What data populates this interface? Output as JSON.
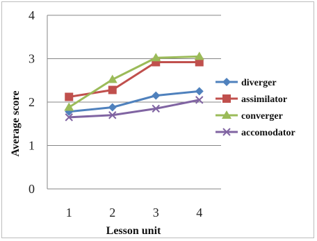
{
  "chart_data": {
    "type": "line",
    "title": "",
    "xlabel": "Lesson unit",
    "ylabel": "Average score",
    "x": [
      1,
      2,
      3,
      4
    ],
    "ylim": [
      0,
      4
    ],
    "yticks": [
      0,
      1,
      2,
      3,
      4
    ],
    "grid": true,
    "legend_position": "right",
    "series": [
      {
        "name": "diverger",
        "values": [
          1.78,
          1.88,
          2.15,
          2.25
        ],
        "color": "#4f81bd",
        "marker": "diamond"
      },
      {
        "name": "assimilator",
        "values": [
          2.12,
          2.28,
          2.92,
          2.92
        ],
        "color": "#c0504d",
        "marker": "square"
      },
      {
        "name": "converger",
        "values": [
          1.88,
          2.52,
          3.02,
          3.05
        ],
        "color": "#9bbb59",
        "marker": "triangle"
      },
      {
        "name": "accomodator",
        "values": [
          1.65,
          1.7,
          1.85,
          2.05
        ],
        "color": "#8064a2",
        "marker": "x"
      }
    ]
  }
}
